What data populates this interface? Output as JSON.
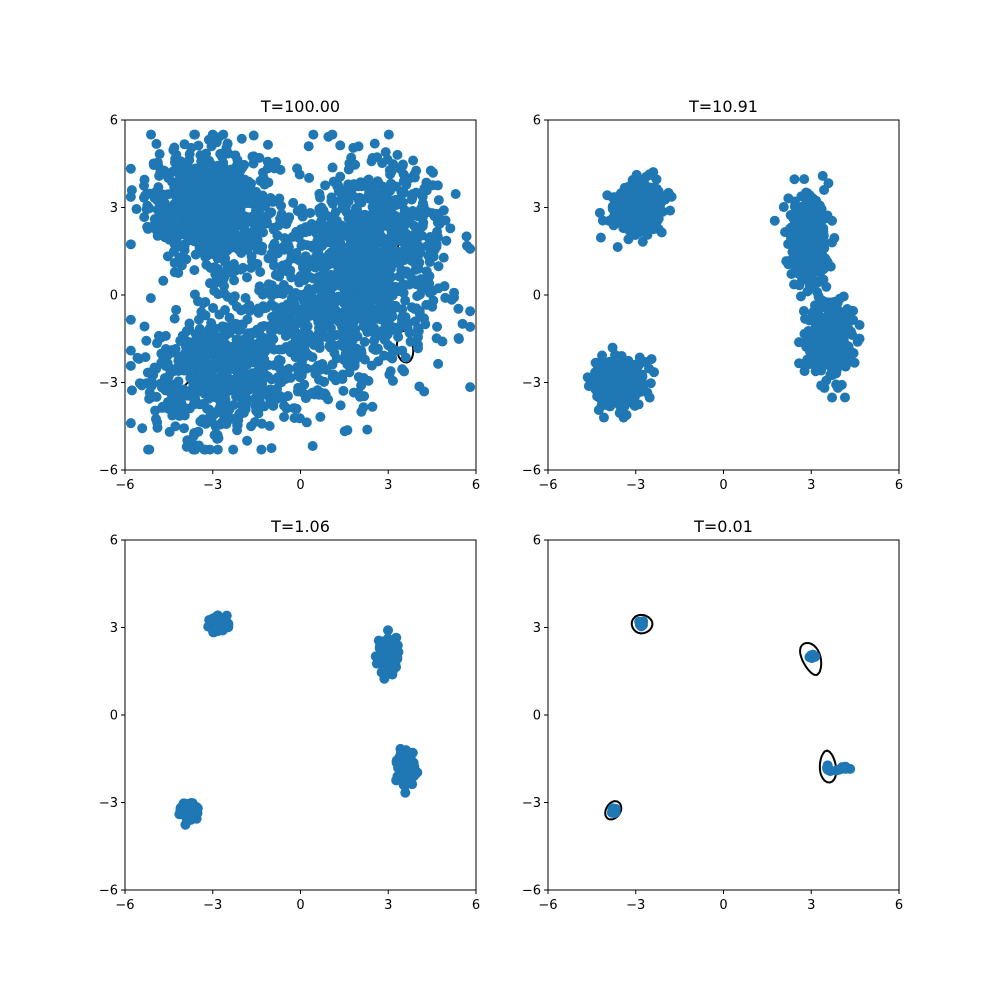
{
  "chart_data": [
    {
      "type": "scatter",
      "title": "T=100.00",
      "xlim": [
        -6,
        6
      ],
      "ylim": [
        -6,
        6
      ],
      "xticks": [
        "−6",
        "−3",
        "0",
        "3",
        "6"
      ],
      "yticks": [
        "−6",
        "−3",
        "0",
        "3",
        "6"
      ],
      "grid": false,
      "contour_levels": [
        -7.3,
        -3.3,
        1.5
      ],
      "points": {
        "color": "#1f77b4",
        "count": 2600,
        "clusters": [
          {
            "center": [
              -3.0,
              3.0
            ],
            "sd": [
              1.1,
              1.0
            ],
            "weight": 0.3
          },
          {
            "center": [
              2.5,
              1.5
            ],
            "sd": [
              1.3,
              1.5
            ],
            "weight": 0.3
          },
          {
            "center": [
              -3.0,
              -2.8
            ],
            "sd": [
              1.2,
              1.1
            ],
            "weight": 0.2
          },
          {
            "center": [
              0.5,
              -1.0
            ],
            "sd": [
              1.8,
              1.6
            ],
            "weight": 0.2
          }
        ],
        "xrange": [
          -5.8,
          5.8
        ],
        "yrange": [
          -5.3,
          5.5
        ]
      }
    },
    {
      "type": "scatter",
      "title": "T=10.91",
      "xlim": [
        -6,
        6
      ],
      "ylim": [
        -6,
        6
      ],
      "xticks": [
        "−6",
        "−3",
        "0",
        "3",
        "6"
      ],
      "yticks": [
        "−6",
        "−3",
        "0",
        "3",
        "6"
      ],
      "grid": false,
      "contour_levels": [
        -11,
        -7.3,
        -3.3,
        1.5
      ],
      "points": {
        "color": "#1f77b4",
        "count": 1400,
        "clusters": [
          {
            "center": [
              -2.9,
              3.0
            ],
            "sd": [
              0.4,
              0.45
            ],
            "weight": 0.28
          },
          {
            "center": [
              -3.6,
              -3.0
            ],
            "sd": [
              0.42,
              0.38
            ],
            "weight": 0.24
          },
          {
            "center": [
              2.9,
              1.8
            ],
            "sd": [
              0.35,
              0.8
            ],
            "weight": 0.24
          },
          {
            "center": [
              3.6,
              -1.5
            ],
            "sd": [
              0.38,
              0.65
            ],
            "weight": 0.24
          }
        ]
      }
    },
    {
      "type": "scatter",
      "title": "T=1.06",
      "xlim": [
        -6,
        6
      ],
      "ylim": [
        -6,
        6
      ],
      "xticks": [
        "−6",
        "−3",
        "0",
        "3",
        "6"
      ],
      "yticks": [
        "−6",
        "−3",
        "0",
        "3",
        "6"
      ],
      "grid": false,
      "contour_levels": [
        -17,
        -13.8,
        -11,
        -7.3,
        -3.3,
        1.5
      ],
      "points": {
        "color": "#1f77b4",
        "count": 700,
        "clusters": [
          {
            "center": [
              -2.8,
              3.1
            ],
            "sd": [
              0.15,
              0.12
            ],
            "weight": 0.25
          },
          {
            "center": [
              -3.8,
              -3.3
            ],
            "sd": [
              0.13,
              0.14
            ],
            "weight": 0.25
          },
          {
            "center": [
              3.0,
              2.0
            ],
            "sd": [
              0.15,
              0.28
            ],
            "weight": 0.25
          },
          {
            "center": [
              3.6,
              -1.8
            ],
            "sd": [
              0.14,
              0.25
            ],
            "weight": 0.25
          }
        ]
      }
    },
    {
      "type": "scatter",
      "title": "T=0.01",
      "xlim": [
        -6,
        6
      ],
      "ylim": [
        -6,
        6
      ],
      "xticks": [
        "−6",
        "−3",
        "0",
        "3",
        "6"
      ],
      "yticks": [
        "−6",
        "−3",
        "0",
        "3",
        "6"
      ],
      "grid": false,
      "contour_levels": [
        -22,
        -20.2,
        -17,
        -13.8,
        -11,
        -7.3,
        -3.3,
        1.5
      ],
      "points": {
        "color": "#1f77b4",
        "count": 60,
        "clusters": [
          {
            "center": [
              -2.8,
              3.13
            ],
            "sd": [
              0.05,
              0.05
            ],
            "weight": 0.25
          },
          {
            "center": [
              -3.78,
              -3.28
            ],
            "sd": [
              0.05,
              0.05
            ],
            "weight": 0.25
          },
          {
            "center": [
              3.0,
              2.0
            ],
            "sd": [
              0.05,
              0.05
            ],
            "weight": 0.2
          },
          {
            "center": [
              3.58,
              -1.85
            ],
            "sd": [
              0.06,
              0.06
            ],
            "weight": 0.15
          },
          {
            "center": [
              4.1,
              -1.85
            ],
            "sd": [
              0.22,
              0.06
            ],
            "weight": 0.15
          }
        ]
      }
    }
  ]
}
